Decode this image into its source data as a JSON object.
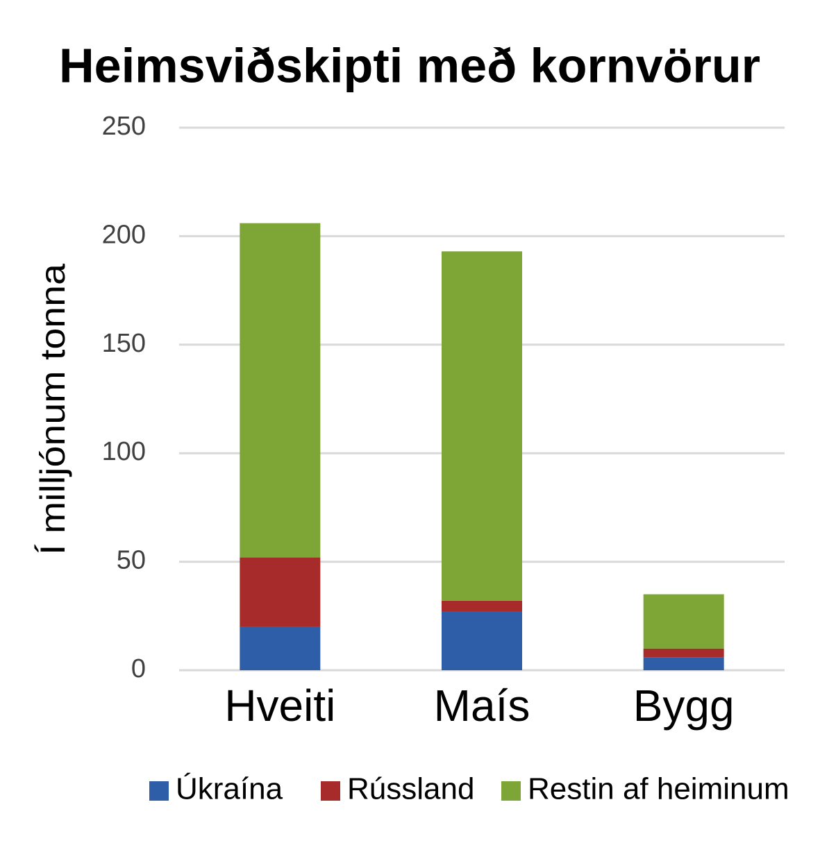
{
  "chart_data": {
    "type": "stacked_bar",
    "title": "Heimsviðskipti með kornvörur",
    "y_label": "Í milljónum tonna",
    "categories": [
      "Hveiti",
      "Maís",
      "Bygg"
    ],
    "series": [
      {
        "name": "Úkraína",
        "color": "#2e5ea8",
        "values": [
          20,
          27,
          6
        ]
      },
      {
        "name": "Rússland",
        "color": "#a82b2b",
        "values": [
          32,
          5,
          4
        ]
      },
      {
        "name": "Restin af heiminum",
        "color": "#7ea637",
        "values": [
          154,
          161,
          25
        ]
      }
    ],
    "ylim": [
      0,
      250
    ],
    "yticks": [
      0,
      50,
      100,
      150,
      200,
      250
    ],
    "grid": true,
    "legend": "bottom"
  }
}
